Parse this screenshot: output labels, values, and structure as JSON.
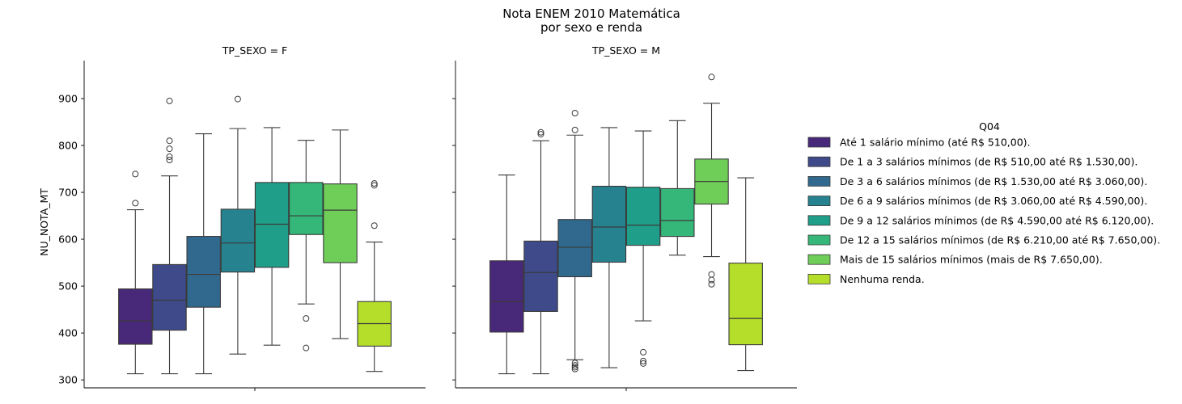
{
  "figure": {
    "title_line1": "Nota ENEM 2010 Matemática",
    "title_line2": "por sexo e renda"
  },
  "chart_data": {
    "type": "boxplot",
    "ylabel": "NU_NOTA_MT",
    "ylim": [
      283,
      981
    ],
    "yticks": [
      300,
      400,
      500,
      600,
      700,
      800,
      900
    ],
    "legend": {
      "title": "Q04",
      "placement": "right",
      "entries": [
        "Até 1 salário mínimo (até R$ 510,00).",
        "De 1 a 3 salários mínimos (de R$ 510,00 até R$ 1.530,00).",
        "De 3 a 6 salários mínimos (de R$ 1.530,00 até R$ 3.060,00).",
        "De 6 a 9 salários mínimos (de R$ 3.060,00 até R$ 4.590,00).",
        "De 9 a 12 salários mínimos (de R$ 4.590,00 até R$ 6.120,00).",
        "De 12 a 15 salários mínimos (de R$ 6.210,00 até R$ 7.650,00).",
        "Mais de 15 salários mínimos (mais de R$ 7.650,00).",
        "Nenhuma renda."
      ],
      "colors": [
        "#482878",
        "#3e4a89",
        "#31688e",
        "#26828e",
        "#1f9e89",
        "#35b779",
        "#6ece58",
        "#b5de2b"
      ]
    },
    "panels": [
      {
        "title": "TP_SEXO = F",
        "boxes": [
          {
            "whislo": 313,
            "q1": 376,
            "med": 426,
            "q3": 494,
            "whishi": 663,
            "fliers": [
              677,
              739
            ]
          },
          {
            "whislo": 313,
            "q1": 406,
            "med": 470,
            "q3": 546,
            "whishi": 735,
            "fliers": [
              769,
              776,
              793,
              810,
              895
            ]
          },
          {
            "whislo": 313,
            "q1": 455,
            "med": 525,
            "q3": 606,
            "whishi": 825,
            "fliers": []
          },
          {
            "whislo": 355,
            "q1": 530,
            "med": 592,
            "q3": 664,
            "whishi": 836,
            "fliers": [
              899
            ]
          },
          {
            "whislo": 374,
            "q1": 540,
            "med": 632,
            "q3": 721,
            "whishi": 838,
            "fliers": []
          },
          {
            "whislo": 462,
            "q1": 610,
            "med": 650,
            "q3": 721,
            "whishi": 811,
            "fliers": [
              368,
              431
            ]
          },
          {
            "whislo": 388,
            "q1": 550,
            "med": 662,
            "q3": 718,
            "whishi": 833,
            "fliers": []
          },
          {
            "whislo": 318,
            "q1": 372,
            "med": 420,
            "q3": 467,
            "whishi": 594,
            "fliers": [
              629,
              715,
              719
            ]
          }
        ]
      },
      {
        "title": "TP_SEXO = M",
        "boxes": [
          {
            "whislo": 313,
            "q1": 402,
            "med": 467,
            "q3": 554,
            "whishi": 737,
            "fliers": []
          },
          {
            "whislo": 313,
            "q1": 446,
            "med": 529,
            "q3": 596,
            "whishi": 810,
            "fliers": [
              824,
              828
            ]
          },
          {
            "whislo": 343,
            "q1": 520,
            "med": 583,
            "q3": 642,
            "whishi": 822,
            "fliers": [
              323,
              327,
              331,
              336,
              833,
              869
            ]
          },
          {
            "whislo": 326,
            "q1": 551,
            "med": 626,
            "q3": 713,
            "whishi": 838,
            "fliers": []
          },
          {
            "whislo": 426,
            "q1": 587,
            "med": 630,
            "q3": 711,
            "whishi": 831,
            "fliers": [
              335,
              340,
              359
            ]
          },
          {
            "whislo": 566,
            "q1": 606,
            "med": 640,
            "q3": 708,
            "whishi": 853,
            "fliers": []
          },
          {
            "whislo": 563,
            "q1": 675,
            "med": 723,
            "q3": 771,
            "whishi": 890,
            "fliers": [
              504,
              513,
              525,
              946
            ]
          },
          {
            "whislo": 320,
            "q1": 375,
            "med": 431,
            "q3": 549,
            "whishi": 731,
            "fliers": []
          }
        ]
      }
    ]
  }
}
